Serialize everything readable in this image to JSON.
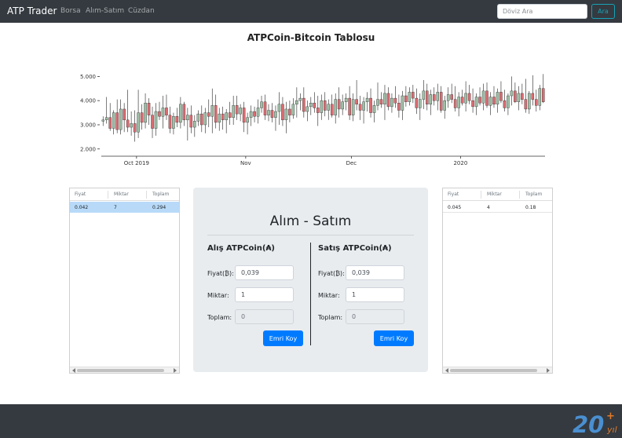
{
  "navbar": {
    "brand": "ATP Trader",
    "links": [
      {
        "label": "Borsa"
      },
      {
        "label": "Alım-Satım"
      },
      {
        "label": "Cüzdan"
      }
    ],
    "search": {
      "placeholder": "Döviz Ara",
      "value": "",
      "button_label": "Ara"
    }
  },
  "chart": {
    "title": "ATPCoin-Bitcoin Tablosu"
  },
  "chart_data": {
    "type": "candlestick",
    "title": "ATPCoin-Bitcoin Tablosu",
    "xlabel": "",
    "ylabel": "",
    "x_ticks": [
      {
        "label": "Oct 2019",
        "day": 10
      },
      {
        "label": "Nov",
        "day": 41
      },
      {
        "label": "Dec",
        "day": 71
      },
      {
        "label": "2020",
        "day": 102
      }
    ],
    "y_ticks": [
      "2.000",
      "3.000",
      "4.000",
      "5.000"
    ],
    "ylim": [
      1700,
      5500
    ],
    "xlim": [
      0,
      126
    ],
    "up_color": "#9fbfa6",
    "down_color": "#dc6c72",
    "ohlc": [
      [
        3150,
        3350,
        2950,
        3200
      ],
      [
        3200,
        4150,
        3050,
        3300
      ],
      [
        3300,
        3900,
        2750,
        2850
      ],
      [
        2850,
        3600,
        2600,
        3500
      ],
      [
        3500,
        4050,
        2650,
        2800
      ],
      [
        2800,
        4050,
        2600,
        3650
      ],
      [
        3650,
        3900,
        2700,
        3200
      ],
      [
        3200,
        4450,
        2700,
        2900
      ],
      [
        2900,
        3550,
        2550,
        3050
      ],
      [
        3050,
        3600,
        2300,
        2700
      ],
      [
        2700,
        4450,
        2450,
        3500
      ],
      [
        3500,
        3850,
        2800,
        3100
      ],
      [
        3100,
        4300,
        2850,
        3900
      ],
      [
        3900,
        4100,
        3000,
        3400
      ],
      [
        3400,
        3750,
        2450,
        2850
      ],
      [
        2850,
        3900,
        2550,
        3550
      ],
      [
        3550,
        3950,
        3200,
        3350
      ],
      [
        3350,
        4200,
        2850,
        3700
      ],
      [
        3700,
        4250,
        3200,
        3400
      ],
      [
        3400,
        3750,
        2650,
        2850
      ],
      [
        2850,
        3500,
        2600,
        3350
      ],
      [
        3350,
        3700,
        2900,
        3100
      ],
      [
        3100,
        4150,
        2850,
        3850
      ],
      [
        3850,
        3950,
        2950,
        3200
      ],
      [
        3200,
        3700,
        2350,
        3400
      ],
      [
        3400,
        3800,
        2650,
        2900
      ],
      [
        2900,
        3400,
        2500,
        3150
      ],
      [
        3150,
        3600,
        2950,
        3450
      ],
      [
        3450,
        3800,
        2700,
        3000
      ],
      [
        3000,
        3700,
        2650,
        3500
      ],
      [
        3500,
        4050,
        2900,
        3350
      ],
      [
        3350,
        4500,
        2650,
        3800
      ],
      [
        3800,
        4250,
        2850,
        3100
      ],
      [
        3100,
        3700,
        2750,
        3450
      ],
      [
        3450,
        3750,
        2800,
        3200
      ],
      [
        3200,
        3650,
        2650,
        3500
      ],
      [
        3500,
        3950,
        3000,
        3300
      ],
      [
        3300,
        4200,
        3000,
        3800
      ],
      [
        3800,
        4200,
        3200,
        3450
      ],
      [
        3450,
        3850,
        3150,
        3700
      ],
      [
        3700,
        3950,
        2700,
        3100
      ],
      [
        3100,
        3500,
        2600,
        3300
      ],
      [
        3300,
        3800,
        2950,
        3550
      ],
      [
        3550,
        3750,
        3100,
        3350
      ],
      [
        3350,
        4050,
        3050,
        3700
      ],
      [
        3700,
        4200,
        3500,
        3950
      ],
      [
        3950,
        4250,
        3200,
        3400
      ],
      [
        3400,
        3850,
        3150,
        3600
      ],
      [
        3600,
        3900,
        3100,
        3300
      ],
      [
        3300,
        3800,
        2750,
        3550
      ],
      [
        3550,
        4350,
        3000,
        3850
      ],
      [
        3850,
        4150,
        2950,
        3200
      ],
      [
        3200,
        3950,
        2650,
        3650
      ],
      [
        3650,
        4000,
        3100,
        3400
      ],
      [
        3400,
        4100,
        3250,
        3850
      ],
      [
        3850,
        4550,
        3300,
        4000
      ],
      [
        4000,
        4300,
        3600,
        4100
      ],
      [
        4100,
        4550,
        3300,
        3550
      ],
      [
        3550,
        4000,
        3150,
        3750
      ],
      [
        3750,
        4150,
        3400,
        3900
      ],
      [
        3900,
        4350,
        3500,
        3700
      ],
      [
        3700,
        4200,
        2950,
        3500
      ],
      [
        3500,
        4250,
        3200,
        4000
      ],
      [
        4000,
        4350,
        3350,
        3600
      ],
      [
        3600,
        4050,
        3200,
        3850
      ],
      [
        3850,
        4250,
        3300,
        3400
      ],
      [
        3400,
        4300,
        3050,
        4050
      ],
      [
        4050,
        4550,
        3300,
        3650
      ],
      [
        3650,
        4250,
        3400,
        3950
      ],
      [
        3950,
        4300,
        3600,
        4100
      ],
      [
        4100,
        4600,
        3200,
        3400
      ],
      [
        3400,
        4300,
        3150,
        4050
      ],
      [
        4050,
        4850,
        3600,
        3850
      ],
      [
        3850,
        4200,
        3200,
        3600
      ],
      [
        3600,
        4150,
        3050,
        3950
      ],
      [
        3950,
        4350,
        3550,
        4100
      ],
      [
        4100,
        4500,
        3300,
        3500
      ],
      [
        3500,
        4000,
        3100,
        3800
      ],
      [
        3800,
        4750,
        3600,
        4050
      ],
      [
        4050,
        4350,
        3700,
        3850
      ],
      [
        3850,
        4650,
        3200,
        4300
      ],
      [
        4300,
        4550,
        3600,
        3750
      ],
      [
        3750,
        4300,
        3500,
        4100
      ],
      [
        4100,
        4600,
        3700,
        3900
      ],
      [
        3900,
        4250,
        3300,
        3600
      ],
      [
        3600,
        4400,
        3200,
        4200
      ],
      [
        4200,
        4600,
        3750,
        3950
      ],
      [
        3950,
        4550,
        3800,
        4350
      ],
      [
        4350,
        4650,
        3900,
        4100
      ],
      [
        4100,
        4500,
        3450,
        3700
      ],
      [
        3700,
        4300,
        3200,
        4050
      ],
      [
        4050,
        4850,
        3650,
        4400
      ],
      [
        4400,
        4700,
        3600,
        3850
      ],
      [
        3850,
        4450,
        3400,
        4250
      ],
      [
        4250,
        4550,
        3800,
        4000
      ],
      [
        4000,
        4700,
        3600,
        4350
      ],
      [
        4350,
        4600,
        3500,
        3600
      ],
      [
        3600,
        4200,
        3250,
        4000
      ],
      [
        4000,
        4550,
        3700,
        4250
      ],
      [
        4250,
        4700,
        3900,
        4050
      ],
      [
        4050,
        4600,
        3550,
        3700
      ],
      [
        3700,
        4350,
        3350,
        4150
      ],
      [
        4150,
        4450,
        3800,
        3900
      ],
      [
        3900,
        4800,
        3550,
        4300
      ],
      [
        4300,
        4650,
        3850,
        4000
      ],
      [
        4000,
        4500,
        3500,
        3750
      ],
      [
        3750,
        4300,
        3400,
        4150
      ],
      [
        4150,
        4550,
        3800,
        3900
      ],
      [
        3900,
        4700,
        3600,
        4400
      ],
      [
        4400,
        4750,
        3700,
        3800
      ],
      [
        3800,
        4350,
        3400,
        4150
      ],
      [
        4150,
        4600,
        3700,
        3850
      ],
      [
        3850,
        4500,
        3500,
        4350
      ],
      [
        4350,
        4800,
        3900,
        4000
      ],
      [
        4000,
        4450,
        3550,
        3700
      ],
      [
        3700,
        4300,
        3400,
        4200
      ],
      [
        4200,
        5000,
        3800,
        4400
      ],
      [
        4400,
        4750,
        3900,
        3950
      ],
      [
        3950,
        4600,
        3600,
        4300
      ],
      [
        4300,
        4700,
        3850,
        4050
      ],
      [
        4050,
        4900,
        3500,
        3650
      ],
      [
        3650,
        4400,
        3450,
        4300
      ],
      [
        4300,
        5050,
        3800,
        4050
      ],
      [
        4050,
        4450,
        3550,
        3800
      ],
      [
        3800,
        4650,
        3600,
        4500
      ],
      [
        4500,
        5100,
        3900,
        3950
      ]
    ]
  },
  "buy_orders": {
    "headers": [
      "Fiyat",
      "Miktar",
      "Toplam"
    ],
    "rows": [
      [
        "0.042",
        "7",
        "0.294"
      ]
    ]
  },
  "sell_orders": {
    "headers": [
      "Fiyat",
      "Miktar",
      "Toplam"
    ],
    "rows": [
      [
        "0.045",
        "4",
        "0.18"
      ]
    ]
  },
  "trade": {
    "title": "Alım - Satım",
    "buy": {
      "title": "Alış ATPCoin(₳)",
      "price_label": "Fiyat(₿):",
      "price_value": "0,039",
      "amount_label": "Miktar:",
      "amount_value": "1",
      "total_label": "Toplam:",
      "total_value": "0",
      "button_label": "Emri Koy"
    },
    "sell": {
      "title": "Satış ATPCoin(₳)",
      "price_label": "Fiyat(₿):",
      "price_value": "0,039",
      "amount_label": "Miktar:",
      "amount_value": "1",
      "total_label": "Toplam:",
      "total_value": "0",
      "button_label": "Emri Koy"
    }
  },
  "footer": {
    "logo_number": "20",
    "logo_text": "yıl",
    "logo_color": "#e0792a",
    "logo_number_color": "#4a8fd0"
  }
}
